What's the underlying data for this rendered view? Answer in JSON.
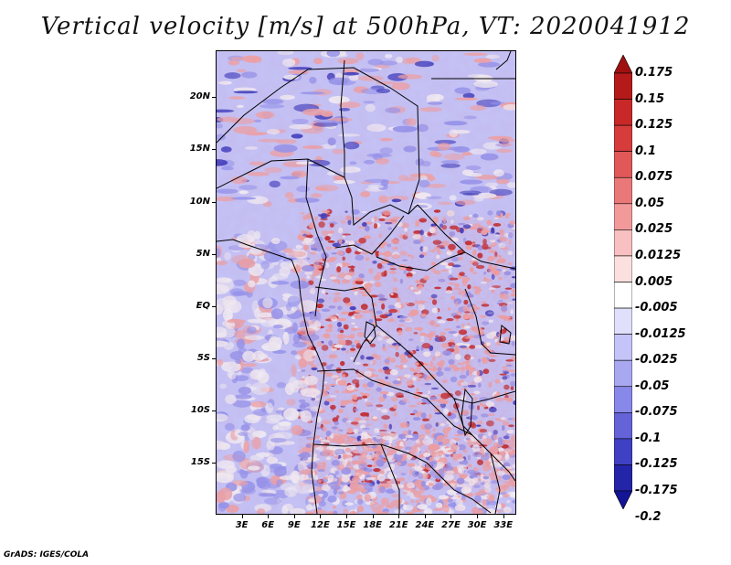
{
  "title": "Vertical velocity [m/s] at 500hPa, VT: 2020041912",
  "footer": "GrADS: IGES/COLA",
  "lat_labels": [
    "20N",
    "15N",
    "10N",
    "5N",
    "EQ",
    "5S",
    "10S",
    "15S"
  ],
  "lon_labels": [
    "3E",
    "6E",
    "9E",
    "12E",
    "15E",
    "18E",
    "21E",
    "24E",
    "27E",
    "30E",
    "33E"
  ],
  "colorbar": {
    "labels": [
      "0.175",
      "0.15",
      "0.125",
      "0.1",
      "0.075",
      "0.05",
      "0.025",
      "0.0125",
      "0.005",
      "-0.005",
      "-0.0125",
      "-0.025",
      "-0.05",
      "-0.075",
      "-0.1",
      "-0.125",
      "-0.175",
      "-0.2"
    ],
    "colors": [
      "#a01010",
      "#b41a1a",
      "#c82828",
      "#d63c3c",
      "#e05858",
      "#ea7878",
      "#f29a9a",
      "#f8c0c0",
      "#fce0e0",
      "#ffffff",
      "#e0e0fc",
      "#c4c4f8",
      "#a8a8f0",
      "#8888e8",
      "#6464d8",
      "#4040c4",
      "#2424a8",
      "#141496"
    ]
  },
  "map": {
    "lon_range": [
      0,
      34.5
    ],
    "lat_range": [
      -20,
      24.5
    ],
    "field_colors": {
      "weak_sink": "#c4c4f8",
      "sink": "#9090ec",
      "strong_sink": "#3030b8",
      "neutral": "#f4f0f4",
      "lift": "#f0a0a0",
      "strong_lift": "#c02020"
    }
  }
}
